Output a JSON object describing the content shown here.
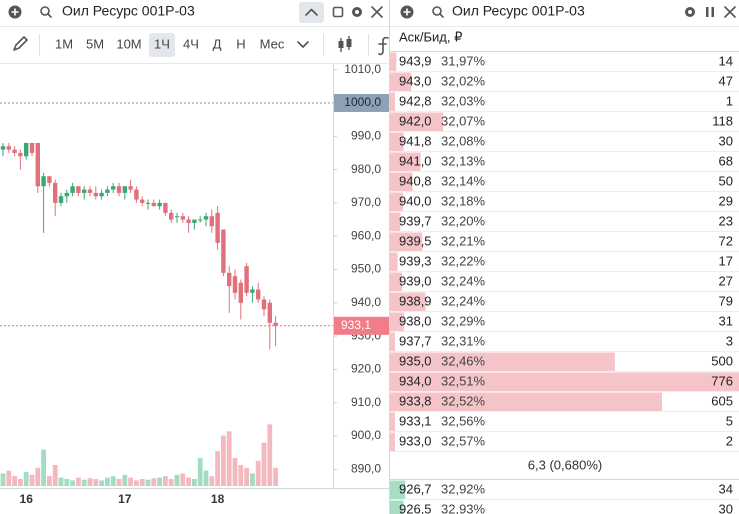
{
  "left_panel": {
    "title": "Оил Ресурс 001Р-03",
    "intervals": [
      "1М",
      "5М",
      "10М",
      "1Ч",
      "4Ч",
      "Д",
      "Н",
      "Мес"
    ],
    "selected_interval": 3
  },
  "chart_data": {
    "type": "candlestick",
    "categories": [
      null,
      null,
      null,
      null,
      "16",
      null,
      null,
      null,
      null,
      null,
      null,
      null,
      null,
      null,
      null,
      null,
      null,
      null,
      null,
      null,
      null,
      "17",
      null,
      null,
      null,
      null,
      null,
      null,
      null,
      null,
      null,
      null,
      null,
      null,
      null,
      null,
      null,
      "18",
      null,
      null,
      null,
      null,
      null,
      null,
      null,
      null,
      null,
      null
    ],
    "open": [
      986,
      987,
      986,
      985,
      984,
      988,
      988,
      975,
      978,
      976,
      970,
      972,
      973,
      975,
      973,
      974,
      973,
      972,
      973,
      974,
      975,
      973,
      975,
      974,
      971,
      970,
      970,
      969,
      970,
      967,
      966,
      966,
      965,
      964,
      965,
      965,
      966,
      967,
      962,
      949,
      948,
      946,
      951,
      943,
      944,
      941,
      940,
      934
    ],
    "high": [
      988,
      988,
      987,
      986,
      988,
      988,
      988,
      979,
      978,
      977,
      973,
      974,
      976,
      975,
      975,
      975,
      975,
      974,
      975,
      976,
      976,
      975,
      977,
      975,
      972,
      971,
      971,
      971,
      970,
      968,
      967,
      967,
      966,
      965,
      966,
      967,
      968,
      969,
      962,
      951,
      950,
      947,
      952,
      945,
      946,
      942,
      941,
      936
    ],
    "low": [
      984,
      985,
      984,
      980,
      983,
      984,
      973,
      961,
      975,
      966,
      969,
      970,
      972,
      972,
      971,
      972,
      971,
      971,
      972,
      973,
      972,
      971,
      973,
      970,
      969,
      968,
      969,
      968,
      966,
      964,
      964,
      964,
      961,
      962,
      964,
      963,
      961,
      956,
      948,
      937,
      941,
      935,
      942,
      940,
      940,
      936,
      926,
      927
    ],
    "close": [
      987,
      986,
      985,
      984,
      988,
      985,
      975,
      978,
      976,
      970,
      972,
      973,
      975,
      973,
      974,
      973,
      972,
      973,
      974,
      975,
      973,
      975,
      974,
      971,
      970,
      970,
      969,
      970,
      967,
      965,
      966,
      965,
      964,
      965,
      965,
      966,
      963,
      958,
      949,
      945,
      943,
      940,
      943,
      944,
      941,
      938,
      934,
      933.1
    ],
    "volume": [
      18,
      22,
      14,
      10,
      20,
      16,
      26,
      52,
      14,
      30,
      12,
      10,
      8,
      12,
      9,
      11,
      10,
      8,
      12,
      14,
      10,
      16,
      12,
      8,
      10,
      9,
      11,
      12,
      14,
      10,
      16,
      18,
      12,
      10,
      40,
      22,
      14,
      50,
      72,
      78,
      40,
      30,
      26,
      18,
      36,
      62,
      88,
      26
    ],
    "volume_lim": [
      0,
      100
    ],
    "ylim": [
      884.4,
      1011.1
    ],
    "yticks": [
      {
        "value": 890,
        "label": "890,0"
      },
      {
        "value": 900,
        "label": "900,0"
      },
      {
        "value": 910,
        "label": "910,0"
      },
      {
        "value": 920,
        "label": "920,0"
      },
      {
        "value": 930,
        "label": "930,0"
      },
      {
        "value": 940,
        "label": "940,0"
      },
      {
        "value": 950,
        "label": "950,0"
      },
      {
        "value": 960,
        "label": "960,0"
      },
      {
        "value": 970,
        "label": "970,0"
      },
      {
        "value": 980,
        "label": "980,0"
      },
      {
        "value": 990,
        "label": "990,0"
      },
      {
        "value": 1010,
        "label": "1010,0"
      }
    ],
    "ref_price": {
      "value": 1000,
      "label": "1000,0"
    },
    "last_price": {
      "value": 933.1,
      "label": "933,1"
    },
    "up_color": "#3aa776",
    "down_color": "#e0707b",
    "up_volume_color": "#a3dcc2",
    "down_volume_color": "#f3b9bf"
  },
  "order_book": {
    "title": "Оил Ресурс 001Р-03",
    "column_header": "Аск/Бид, ₽",
    "ask_color": "#f4c4c9",
    "bid_color": "#a9dcc4",
    "asks": [
      {
        "price": "943,9",
        "yield": "31,97%",
        "qty": 14
      },
      {
        "price": "943,0",
        "yield": "32,02%",
        "qty": 47
      },
      {
        "price": "942,8",
        "yield": "32,03%",
        "qty": 1
      },
      {
        "price": "942,0",
        "yield": "32,07%",
        "qty": 118
      },
      {
        "price": "941,8",
        "yield": "32,08%",
        "qty": 30
      },
      {
        "price": "941,0",
        "yield": "32,13%",
        "qty": 68
      },
      {
        "price": "940,8",
        "yield": "32,14%",
        "qty": 50
      },
      {
        "price": "940,0",
        "yield": "32,18%",
        "qty": 29
      },
      {
        "price": "939,7",
        "yield": "32,20%",
        "qty": 23
      },
      {
        "price": "939,5",
        "yield": "32,21%",
        "qty": 72
      },
      {
        "price": "939,3",
        "yield": "32,22%",
        "qty": 17
      },
      {
        "price": "939,0",
        "yield": "32,24%",
        "qty": 27
      },
      {
        "price": "938,9",
        "yield": "32,24%",
        "qty": 79
      },
      {
        "price": "938,0",
        "yield": "32,29%",
        "qty": 31
      },
      {
        "price": "937,7",
        "yield": "32,31%",
        "qty": 3
      },
      {
        "price": "935,0",
        "yield": "32,46%",
        "qty": 500
      },
      {
        "price": "934,0",
        "yield": "32,51%",
        "qty": 776
      },
      {
        "price": "933,8",
        "yield": "32,52%",
        "qty": 605
      },
      {
        "price": "933,1",
        "yield": "32,56%",
        "qty": 5
      },
      {
        "price": "933,0",
        "yield": "32,57%",
        "qty": 2
      }
    ],
    "spread": "6,3 (0,680%)",
    "bids": [
      {
        "price": "926,7",
        "yield": "32,92%",
        "qty": 34
      },
      {
        "price": "926,5",
        "yield": "32,93%",
        "qty": 30
      }
    ]
  }
}
